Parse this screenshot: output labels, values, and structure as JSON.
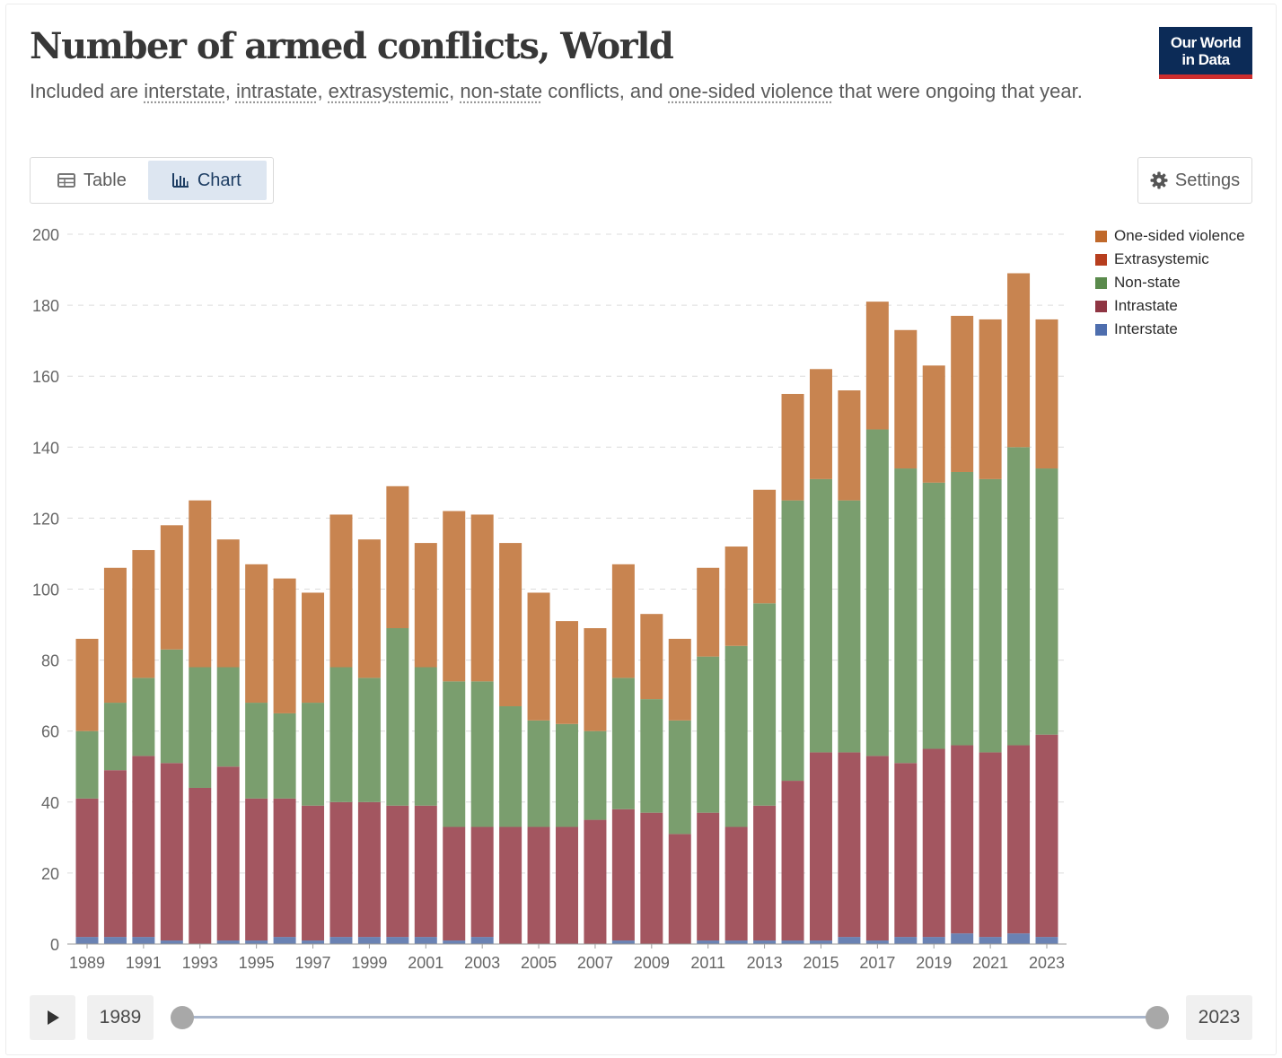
{
  "header": {
    "title": "Number of armed conflicts, World",
    "subtitle_prefix": "Included are ",
    "subtitle_terms": [
      "interstate",
      "intrastate",
      "extrasystemic",
      "non-state",
      "one-sided violence"
    ],
    "subtitle_sep": ", ",
    "subtitle_and": " conflicts, and ",
    "subtitle_suffix": " that were ongoing that year.",
    "logo_line1": "Our World",
    "logo_line2": "in Data"
  },
  "tabs": [
    {
      "label": "Table",
      "icon": "table-icon",
      "active": false
    },
    {
      "label": "Chart",
      "icon": "bar-chart-icon",
      "active": true
    }
  ],
  "settings_label": "Settings",
  "timeline": {
    "start_label": "1989",
    "end_label": "2023"
  },
  "chart_data": {
    "type": "bar",
    "stacked": true,
    "title": "Number of armed conflicts, World",
    "categories": [
      "1989",
      "1990",
      "1991",
      "1992",
      "1993",
      "1994",
      "1995",
      "1996",
      "1997",
      "1998",
      "1999",
      "2000",
      "2001",
      "2002",
      "2003",
      "2004",
      "2005",
      "2006",
      "2007",
      "2008",
      "2009",
      "2010",
      "2011",
      "2012",
      "2013",
      "2014",
      "2015",
      "2016",
      "2017",
      "2018",
      "2019",
      "2020",
      "2021",
      "2022",
      "2023"
    ],
    "x_tick_labels": [
      "1989",
      "1991",
      "1993",
      "1995",
      "1997",
      "1999",
      "2001",
      "2003",
      "2005",
      "2007",
      "2009",
      "2011",
      "2013",
      "2015",
      "2017",
      "2019",
      "2021",
      "2023"
    ],
    "y_ticks": [
      0,
      20,
      40,
      60,
      80,
      100,
      120,
      140,
      160,
      180,
      200
    ],
    "ylim": [
      0,
      200
    ],
    "grid": true,
    "legend_position": "right",
    "series": [
      {
        "name": "Interstate",
        "color": "#6a82b3",
        "values": [
          2,
          2,
          2,
          1,
          0,
          1,
          1,
          2,
          1,
          2,
          2,
          2,
          2,
          1,
          2,
          0,
          0,
          0,
          0,
          1,
          0,
          0,
          1,
          1,
          1,
          1,
          1,
          2,
          1,
          2,
          2,
          3,
          2,
          3,
          2
        ]
      },
      {
        "name": "Intrastate",
        "color": "#a35660",
        "values": [
          39,
          47,
          51,
          50,
          44,
          49,
          40,
          39,
          38,
          38,
          38,
          37,
          37,
          32,
          31,
          33,
          33,
          33,
          35,
          37,
          37,
          31,
          36,
          32,
          38,
          45,
          53,
          52,
          52,
          49,
          53,
          53,
          52,
          53,
          57
        ]
      },
      {
        "name": "Non-state",
        "color": "#7a9e6e",
        "values": [
          19,
          19,
          22,
          32,
          34,
          28,
          27,
          24,
          29,
          38,
          35,
          50,
          39,
          41,
          41,
          34,
          30,
          29,
          25,
          37,
          32,
          32,
          44,
          51,
          57,
          79,
          77,
          71,
          92,
          83,
          75,
          77,
          77,
          84,
          75
        ]
      },
      {
        "name": "Extrasystemic",
        "color": "#b73e1e",
        "values": [
          0,
          0,
          0,
          0,
          0,
          0,
          0,
          0,
          0,
          0,
          0,
          0,
          0,
          0,
          0,
          0,
          0,
          0,
          0,
          0,
          0,
          0,
          0,
          0,
          0,
          0,
          0,
          0,
          0,
          0,
          0,
          0,
          0,
          0,
          0
        ]
      },
      {
        "name": "One-sided violence",
        "color": "#c88450",
        "values": [
          26,
          38,
          36,
          35,
          47,
          36,
          39,
          38,
          31,
          43,
          39,
          40,
          35,
          48,
          47,
          46,
          36,
          29,
          29,
          32,
          24,
          23,
          25,
          28,
          32,
          30,
          31,
          31,
          36,
          39,
          33,
          44,
          45,
          49,
          42
        ]
      }
    ],
    "legend_order": [
      "One-sided violence",
      "Extrasystemic",
      "Non-state",
      "Intrastate",
      "Interstate"
    ],
    "legend_colors": [
      "#c0692b",
      "#b73e1e",
      "#5a8a4c",
      "#8f3543",
      "#4e6eae"
    ]
  }
}
